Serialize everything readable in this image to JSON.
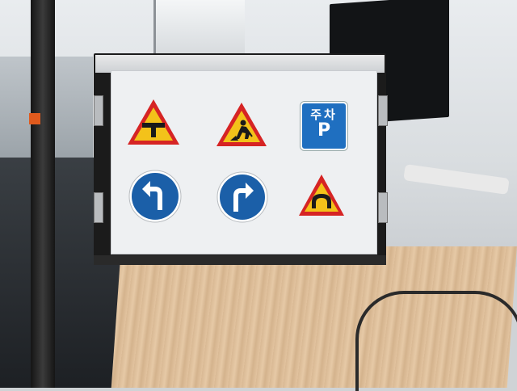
{
  "scene": {
    "description_free": true
  },
  "signs": [
    {
      "id": "t-junction",
      "icon": "t-junction-warning-icon",
      "shape": "triangle",
      "fill": "#f3c21a",
      "border": "#d62424"
    },
    {
      "id": "road-work",
      "icon": "road-work-warning-icon",
      "shape": "triangle",
      "fill": "#f3c21a",
      "border": "#d62424"
    },
    {
      "id": "parking",
      "icon": "parking-sign-icon",
      "shape": "square",
      "fill": "#1f6fc0",
      "text_top": "주차",
      "text_bottom": "P"
    },
    {
      "id": "turn-left",
      "icon": "turn-left-arrow-icon",
      "shape": "circle",
      "fill": "#1b5fa8"
    },
    {
      "id": "turn-right",
      "icon": "turn-right-arrow-icon",
      "shape": "circle",
      "fill": "#1b5fa8"
    },
    {
      "id": "tunnel",
      "icon": "tunnel-warning-icon",
      "shape": "triangle",
      "fill": "#f3c21a",
      "border": "#d62424"
    }
  ]
}
